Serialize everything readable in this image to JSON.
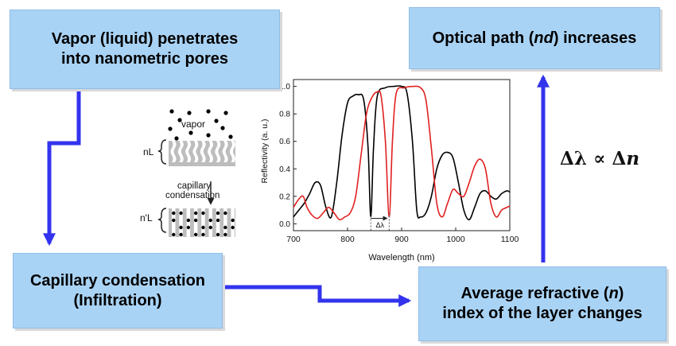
{
  "boxes": {
    "vapor": {
      "line1": "Vapor (liquid) penetrates",
      "line2": "into nanometric pores"
    },
    "optical": {
      "pre": "Optical path (",
      "var": "nd",
      "post": ") increases"
    },
    "capillary": {
      "line1": "Capillary condensation",
      "line2": "(Infiltration)"
    },
    "refractive": {
      "pre": "Average refractive (",
      "var": "n",
      "post": ")",
      "line2": "index of the layer changes"
    }
  },
  "formula": {
    "lhs": "Δλ",
    "op": " ∝ ",
    "rhs_delta": "Δ",
    "rhs_var": "n"
  },
  "schematic": {
    "vapor_label": "vapor",
    "top_layer_label": "nL",
    "process_label_line1": "capillary",
    "process_label_line2": "condensation",
    "bottom_layer_label": "n'L"
  },
  "colors": {
    "box_fill": "#a9d3f5",
    "arrow": "#3333ee",
    "series_black": "#000000",
    "series_red": "#e02020"
  },
  "chart_data": {
    "type": "line",
    "xlabel": "Wavelength (nm)",
    "ylabel": "Reflectivity (a. u.)",
    "xlim": [
      700,
      1100
    ],
    "ylim": [
      -0.05,
      1.05
    ],
    "xticks": [
      700,
      800,
      900,
      1000,
      1100
    ],
    "yticks": [
      0.0,
      0.2,
      0.4,
      0.6,
      0.8,
      1.0
    ],
    "annotation": "Δλ",
    "series": [
      {
        "color": "black",
        "points": [
          [
            700,
            0.05
          ],
          [
            710,
            0.1
          ],
          [
            720,
            0.15
          ],
          [
            730,
            0.22
          ],
          [
            740,
            0.3
          ],
          [
            750,
            0.28
          ],
          [
            760,
            0.12
          ],
          [
            770,
            0.05
          ],
          [
            780,
            0.3
          ],
          [
            790,
            0.65
          ],
          [
            800,
            0.88
          ],
          [
            810,
            0.93
          ],
          [
            820,
            0.94
          ],
          [
            830,
            0.9
          ],
          [
            838,
            0.55
          ],
          [
            843,
            0.05
          ],
          [
            848,
            0.55
          ],
          [
            855,
            0.93
          ],
          [
            870,
            0.99
          ],
          [
            885,
            1.0
          ],
          [
            900,
            1.0
          ],
          [
            910,
            0.95
          ],
          [
            920,
            0.6
          ],
          [
            928,
            0.1
          ],
          [
            935,
            0.05
          ],
          [
            945,
            0.08
          ],
          [
            955,
            0.2
          ],
          [
            965,
            0.4
          ],
          [
            975,
            0.5
          ],
          [
            985,
            0.52
          ],
          [
            995,
            0.48
          ],
          [
            1005,
            0.3
          ],
          [
            1015,
            0.1
          ],
          [
            1025,
            0.03
          ],
          [
            1035,
            0.12
          ],
          [
            1045,
            0.22
          ],
          [
            1055,
            0.24
          ],
          [
            1065,
            0.2
          ],
          [
            1075,
            0.18
          ],
          [
            1085,
            0.22
          ],
          [
            1095,
            0.24
          ],
          [
            1100,
            0.23
          ]
        ]
      },
      {
        "color": "red",
        "points": [
          [
            700,
            0.12
          ],
          [
            710,
            0.18
          ],
          [
            718,
            0.2
          ],
          [
            725,
            0.12
          ],
          [
            735,
            0.06
          ],
          [
            745,
            0.04
          ],
          [
            755,
            0.08
          ],
          [
            765,
            0.12
          ],
          [
            775,
            0.08
          ],
          [
            785,
            0.03
          ],
          [
            795,
            0.05
          ],
          [
            805,
            0.08
          ],
          [
            815,
            0.2
          ],
          [
            825,
            0.5
          ],
          [
            835,
            0.8
          ],
          [
            845,
            0.92
          ],
          [
            855,
            0.96
          ],
          [
            862,
            0.93
          ],
          [
            870,
            0.6
          ],
          [
            877,
            0.05
          ],
          [
            883,
            0.6
          ],
          [
            890,
            0.95
          ],
          [
            905,
            0.99
          ],
          [
            920,
            1.0
          ],
          [
            935,
            0.99
          ],
          [
            945,
            0.9
          ],
          [
            955,
            0.55
          ],
          [
            965,
            0.15
          ],
          [
            975,
            0.05
          ],
          [
            985,
            0.15
          ],
          [
            995,
            0.25
          ],
          [
            1005,
            0.22
          ],
          [
            1015,
            0.2
          ],
          [
            1025,
            0.3
          ],
          [
            1035,
            0.42
          ],
          [
            1045,
            0.47
          ],
          [
            1055,
            0.4
          ],
          [
            1065,
            0.15
          ],
          [
            1075,
            0.05
          ],
          [
            1085,
            0.1
          ],
          [
            1095,
            0.12
          ],
          [
            1100,
            0.13
          ]
        ]
      }
    ]
  }
}
